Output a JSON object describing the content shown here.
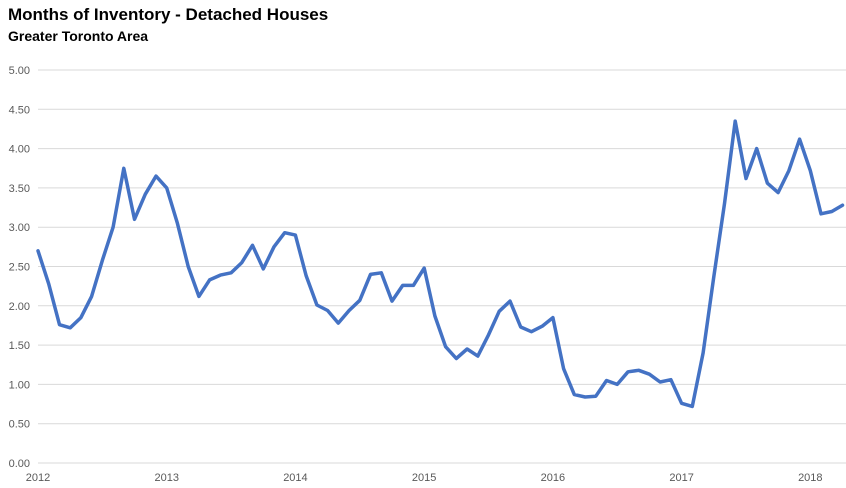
{
  "chart_data": {
    "type": "line",
    "title": "Months of Inventory - Detached Houses",
    "subtitle": "Greater Toronto Area",
    "x_range": [
      "2012-01",
      "2018-04"
    ],
    "x_tick_labels": [
      "2012",
      "2013",
      "2014",
      "2015",
      "2016",
      "2017",
      "2018"
    ],
    "y_tick_labels": [
      "0.00",
      "0.50",
      "1.00",
      "1.50",
      "2.00",
      "2.50",
      "3.00",
      "3.50",
      "4.00",
      "4.50",
      "5.00"
    ],
    "ylim": [
      0,
      5
    ],
    "xlabel": "",
    "ylabel": "",
    "grid": "horizontal",
    "legend": "none",
    "colors": {
      "line": "#4472C4",
      "gridline": "#D9D9D9",
      "tick_text": "#595959",
      "title_text": "#000000",
      "background": "#FFFFFF"
    },
    "series": [
      {
        "name": "Months of Inventory (Detached, GTA)",
        "frequency": "monthly",
        "values": [
          2.7,
          2.28,
          1.76,
          1.72,
          1.85,
          2.12,
          2.58,
          3.0,
          3.75,
          3.1,
          3.42,
          3.65,
          3.5,
          3.05,
          2.5,
          2.12,
          2.33,
          2.39,
          2.42,
          2.55,
          2.77,
          2.47,
          2.75,
          2.93,
          2.9,
          2.38,
          2.01,
          1.94,
          1.78,
          1.94,
          2.07,
          2.4,
          2.42,
          2.06,
          2.26,
          2.26,
          2.48,
          1.87,
          1.48,
          1.33,
          1.45,
          1.36,
          1.63,
          1.93,
          2.06,
          1.73,
          1.67,
          1.74,
          1.85,
          1.2,
          0.87,
          0.84,
          0.85,
          1.05,
          1.0,
          1.16,
          1.18,
          1.13,
          1.03,
          1.06,
          0.76,
          0.72,
          1.4,
          2.37,
          3.3,
          4.35,
          3.62,
          4.0,
          3.56,
          3.44,
          3.72,
          4.12,
          3.72,
          3.17,
          3.2,
          3.28
        ]
      }
    ]
  }
}
